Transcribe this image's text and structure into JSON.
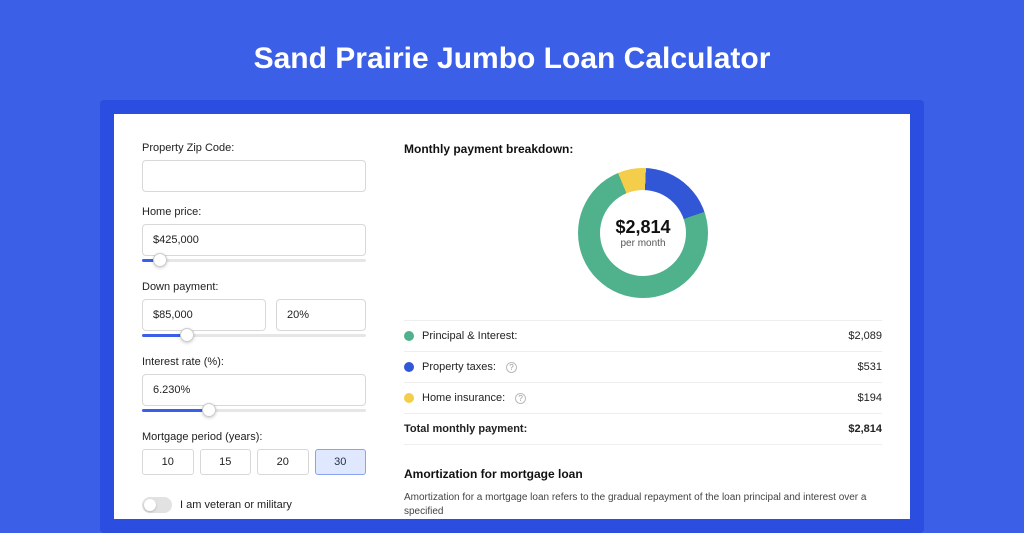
{
  "title": "Sand Prairie Jumbo Loan Calculator",
  "colors": {
    "page_bg": "#3b5fe6",
    "frame_bg": "#2b4de0",
    "principal": "#4fb28c",
    "taxes": "#3257d6",
    "insurance": "#f4ce4a"
  },
  "form": {
    "zip_label": "Property Zip Code:",
    "zip_value": "",
    "home_price_label": "Home price:",
    "home_price_value": "$425,000",
    "home_price_slider": {
      "value_pct": 8
    },
    "down_label": "Down payment:",
    "down_value": "$85,000",
    "down_pct": "20%",
    "down_slider": {
      "value_pct": 20
    },
    "rate_label": "Interest rate (%):",
    "rate_value": "6.230%",
    "rate_slider": {
      "value_pct": 30
    },
    "period_label": "Mortgage period (years):",
    "periods": [
      {
        "label": "10",
        "active": false
      },
      {
        "label": "15",
        "active": false
      },
      {
        "label": "20",
        "active": false
      },
      {
        "label": "30",
        "active": true
      }
    ],
    "veteran_label": "I am veteran or military",
    "veteran_on": false
  },
  "breakdown": {
    "title": "Monthly payment breakdown:",
    "center_value": "$2,814",
    "center_sub": "per month",
    "donut": {
      "principal_pct": 74,
      "taxes_pct": 19,
      "insurance_pct": 7
    },
    "items": [
      {
        "label": "Principal & Interest:",
        "amount": "$2,089",
        "color": "#4fb28c",
        "info": false
      },
      {
        "label": "Property taxes:",
        "amount": "$531",
        "color": "#3257d6",
        "info": true
      },
      {
        "label": "Home insurance:",
        "amount": "$194",
        "color": "#f4ce4a",
        "info": true
      }
    ],
    "total_label": "Total monthly payment:",
    "total_amount": "$2,814"
  },
  "amortization": {
    "title": "Amortization for mortgage loan",
    "text": "Amortization for a mortgage loan refers to the gradual repayment of the loan principal and interest over a specified"
  }
}
